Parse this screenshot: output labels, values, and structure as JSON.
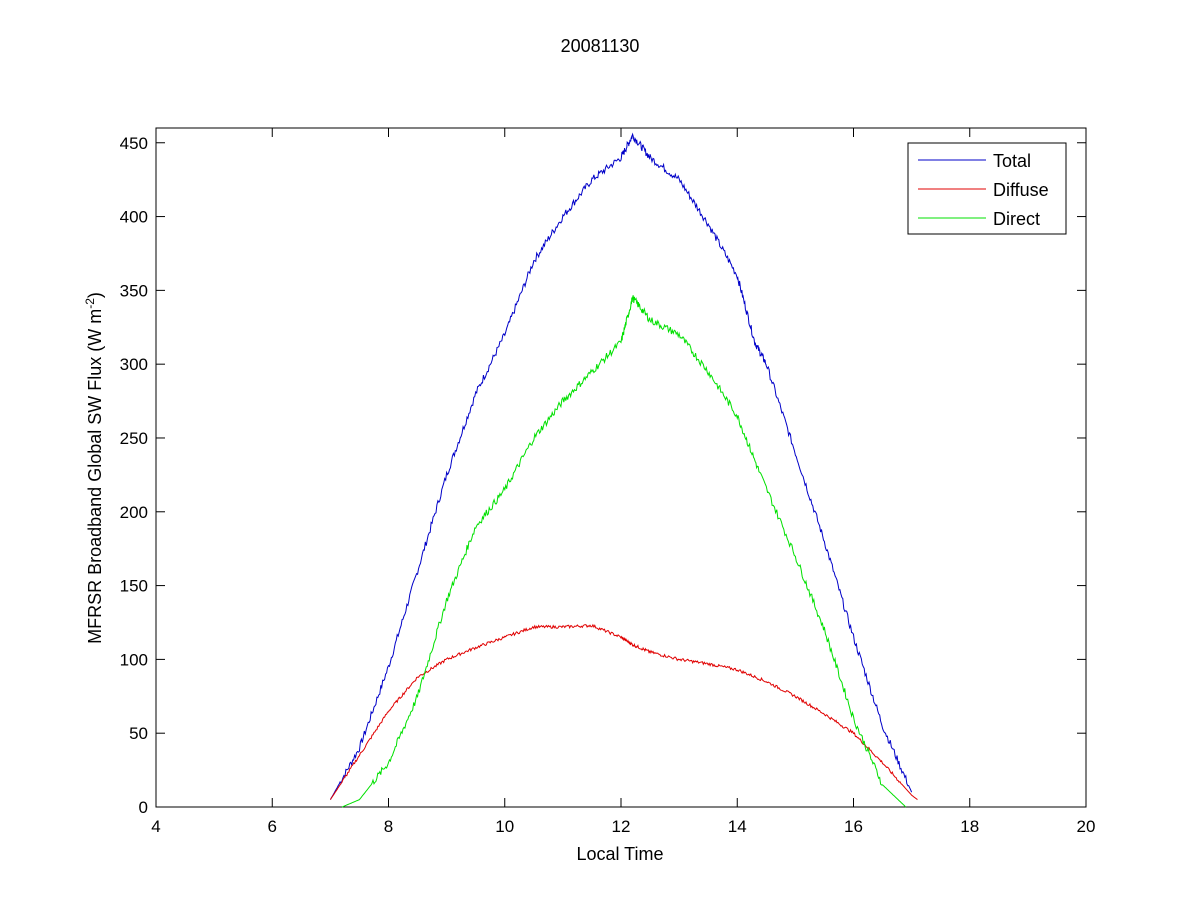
{
  "chart_data": {
    "type": "line",
    "title": "20081130",
    "xlabel": "Local Time",
    "ylabel": "MFRSR Broadband Global SW Flux (W m",
    "ylabel_sup": "-2",
    "ylabel_end": ")",
    "xlim": [
      4,
      20
    ],
    "ylim": [
      0,
      460
    ],
    "xticks": [
      4,
      6,
      8,
      10,
      12,
      14,
      16,
      18,
      20
    ],
    "yticks": [
      0,
      50,
      100,
      150,
      200,
      250,
      300,
      350,
      400,
      450
    ],
    "legend_position": "top-right",
    "series": [
      {
        "name": "Total",
        "color": "#0000c8",
        "x": [
          7.0,
          7.5,
          8.0,
          8.5,
          9.0,
          9.5,
          10.0,
          10.5,
          11.0,
          11.5,
          12.0,
          12.2,
          12.5,
          13.0,
          13.5,
          14.0,
          14.3,
          14.5,
          15.0,
          15.5,
          16.0,
          16.5,
          17.0
        ],
        "y": [
          5,
          40,
          95,
          160,
          225,
          280,
          320,
          370,
          400,
          425,
          440,
          455,
          440,
          425,
          395,
          360,
          315,
          300,
          240,
          180,
          115,
          55,
          10
        ]
      },
      {
        "name": "Diffuse",
        "color": "#e00000",
        "x": [
          7.0,
          7.5,
          8.0,
          8.5,
          9.0,
          9.5,
          10.0,
          10.5,
          11.0,
          11.5,
          12.0,
          12.2,
          12.5,
          13.0,
          13.5,
          14.0,
          14.5,
          15.0,
          15.5,
          16.0,
          16.5,
          17.0,
          17.1
        ],
        "y": [
          5,
          35,
          65,
          88,
          100,
          108,
          115,
          122,
          122,
          123,
          115,
          110,
          105,
          100,
          97,
          93,
          85,
          75,
          63,
          50,
          30,
          8,
          5
        ]
      },
      {
        "name": "Direct",
        "color": "#00e000",
        "x": [
          7.2,
          7.5,
          8.0,
          8.5,
          9.0,
          9.5,
          10.0,
          10.5,
          11.0,
          11.5,
          12.0,
          12.2,
          12.5,
          13.0,
          13.5,
          14.0,
          14.4,
          15.0,
          15.5,
          16.0,
          16.5,
          16.9
        ],
        "y": [
          0,
          5,
          30,
          75,
          140,
          190,
          215,
          250,
          275,
          295,
          315,
          345,
          330,
          320,
          295,
          265,
          225,
          170,
          120,
          60,
          15,
          0
        ]
      }
    ]
  }
}
